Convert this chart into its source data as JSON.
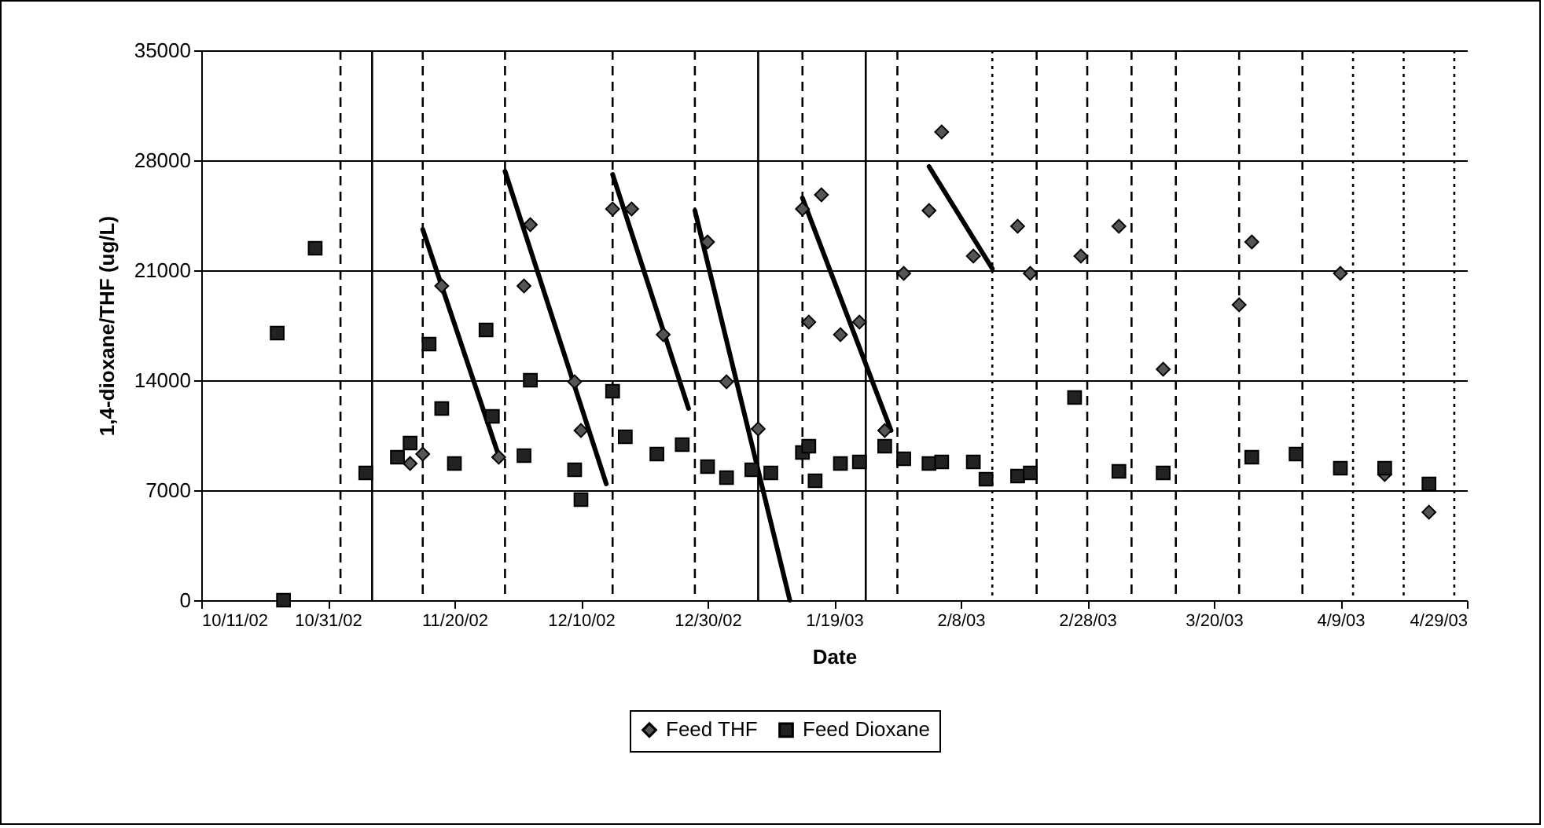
{
  "chart_data": {
    "type": "scatter",
    "xlabel": "Date",
    "ylabel": "1,4-dioxane/THF (ug/L)",
    "xlim": [
      "2002-10-11",
      "2003-04-29"
    ],
    "xticks": [
      {
        "value": "2002-10-11",
        "label": "10/11/02"
      },
      {
        "value": "2002-10-31",
        "label": "10/31/02"
      },
      {
        "value": "2002-11-20",
        "label": "11/20/02"
      },
      {
        "value": "2002-12-10",
        "label": "12/10/02"
      },
      {
        "value": "2002-12-30",
        "label": "12/30/02"
      },
      {
        "value": "2003-01-19",
        "label": "1/19/03"
      },
      {
        "value": "2003-02-08",
        "label": "2/8/03"
      },
      {
        "value": "2003-02-28",
        "label": "2/28/03"
      },
      {
        "value": "2003-03-20",
        "label": "3/20/03"
      },
      {
        "value": "2003-04-09",
        "label": "4/9/03"
      },
      {
        "value": "2003-04-29",
        "label": "4/29/03"
      }
    ],
    "ylim": [
      0,
      35000
    ],
    "yticks": [
      0,
      7000,
      14000,
      21000,
      28000,
      35000
    ],
    "grid": "y",
    "legend": "bottom",
    "series": [
      {
        "name": "Feed THF",
        "marker": "diamond",
        "color": "#555555",
        "x": [
          "2002-11-13",
          "2002-11-15",
          "2002-11-18",
          "2002-11-27",
          "2002-12-01",
          "2002-12-02",
          "2002-12-09",
          "2002-12-10",
          "2002-12-15",
          "2002-12-18",
          "2002-12-23",
          "2002-12-30",
          "2003-01-02",
          "2003-01-07",
          "2003-01-14",
          "2003-01-15",
          "2003-01-17",
          "2003-01-20",
          "2003-01-23",
          "2003-01-27",
          "2003-01-30",
          "2003-02-03",
          "2003-02-05",
          "2003-02-10",
          "2003-02-17",
          "2003-02-19",
          "2003-02-27",
          "2003-03-05",
          "2003-03-12",
          "2003-03-24",
          "2003-03-26",
          "2003-04-09",
          "2003-04-16",
          "2003-04-23"
        ],
        "values": [
          8700,
          9300,
          20000,
          9100,
          20000,
          23900,
          13900,
          10800,
          24900,
          24900,
          16900,
          22800,
          13900,
          10900,
          24900,
          17700,
          25800,
          16900,
          17700,
          10800,
          20800,
          24800,
          29800,
          21900,
          23800,
          20800,
          21900,
          23800,
          14700,
          18800,
          22800,
          20800,
          8000,
          5600
        ]
      },
      {
        "name": "Feed Dioxane",
        "marker": "square",
        "color": "#222222",
        "x": [
          "2002-10-23",
          "2002-10-24",
          "2002-10-29",
          "2002-11-06",
          "2002-11-11",
          "2002-11-13",
          "2002-11-16",
          "2002-11-18",
          "2002-11-20",
          "2002-11-25",
          "2002-11-26",
          "2002-12-01",
          "2002-12-02",
          "2002-12-09",
          "2002-12-10",
          "2002-12-15",
          "2002-12-17",
          "2002-12-22",
          "2002-12-26",
          "2002-12-30",
          "2003-01-02",
          "2003-01-06",
          "2003-01-09",
          "2003-01-14",
          "2003-01-15",
          "2003-01-16",
          "2003-01-20",
          "2003-01-23",
          "2003-01-27",
          "2003-01-30",
          "2003-02-03",
          "2003-02-05",
          "2003-02-10",
          "2003-02-12",
          "2003-02-17",
          "2003-02-19",
          "2003-02-26",
          "2003-03-05",
          "2003-03-12",
          "2003-03-26",
          "2003-04-02",
          "2003-04-09",
          "2003-04-16",
          "2003-04-23"
        ],
        "values": [
          17000,
          0,
          22400,
          8100,
          9100,
          10000,
          16300,
          12200,
          8700,
          17200,
          11700,
          9200,
          14000,
          8300,
          6400,
          13300,
          10400,
          9300,
          9900,
          8500,
          7800,
          8300,
          8100,
          9400,
          9800,
          7600,
          8700,
          8800,
          9800,
          9000,
          8700,
          8800,
          8800,
          7700,
          7900,
          8100,
          12900,
          8200,
          8100,
          9100,
          9300,
          8400,
          8400,
          7400
        ]
      },
      {
        "type": "line",
        "color": "#000000",
        "x": [
          "2002-11-15",
          "2002-11-27"
        ],
        "values": [
          23600,
          9200
        ]
      },
      {
        "type": "line",
        "color": "#000000",
        "x": [
          "2002-11-28",
          "2002-12-14"
        ],
        "values": [
          27300,
          7400
        ]
      },
      {
        "type": "line",
        "color": "#000000",
        "x": [
          "2002-12-15",
          "2002-12-27"
        ],
        "values": [
          27100,
          12200
        ]
      },
      {
        "type": "line",
        "color": "#000000",
        "x": [
          "2002-12-28",
          "2003-01-12"
        ],
        "values": [
          24800,
          0
        ]
      },
      {
        "type": "line",
        "color": "#000000",
        "x": [
          "2003-01-14",
          "2003-01-28"
        ],
        "values": [
          25600,
          10800
        ]
      },
      {
        "type": "line",
        "color": "#000000",
        "x": [
          "2003-02-03",
          "2003-02-13"
        ],
        "values": [
          27600,
          21100
        ]
      }
    ],
    "ref_lines": [
      {
        "axis": "x",
        "value": "2002-11-02",
        "line_style": "dashed"
      },
      {
        "axis": "x",
        "value": "2002-11-07",
        "line_style": "solid"
      },
      {
        "axis": "x",
        "value": "2002-11-15",
        "line_style": "dashed"
      },
      {
        "axis": "x",
        "value": "2002-11-28",
        "line_style": "dashed"
      },
      {
        "axis": "x",
        "value": "2002-12-15",
        "line_style": "dashed"
      },
      {
        "axis": "x",
        "value": "2002-12-28",
        "line_style": "dashed"
      },
      {
        "axis": "x",
        "value": "2003-01-07",
        "line_style": "solid"
      },
      {
        "axis": "x",
        "value": "2003-01-14",
        "line_style": "dashed"
      },
      {
        "axis": "x",
        "value": "2003-01-24",
        "line_style": "solid"
      },
      {
        "axis": "x",
        "value": "2003-01-29",
        "line_style": "dashed"
      },
      {
        "axis": "x",
        "value": "2003-02-13",
        "line_style": "dotted"
      },
      {
        "axis": "x",
        "value": "2003-02-20",
        "line_style": "dashed"
      },
      {
        "axis": "x",
        "value": "2003-02-28",
        "line_style": "dashed"
      },
      {
        "axis": "x",
        "value": "2003-03-07",
        "line_style": "dashed"
      },
      {
        "axis": "x",
        "value": "2003-03-14",
        "line_style": "dashed"
      },
      {
        "axis": "x",
        "value": "2003-03-24",
        "line_style": "dashed"
      },
      {
        "axis": "x",
        "value": "2003-04-03",
        "line_style": "dashed"
      },
      {
        "axis": "x",
        "value": "2003-04-11",
        "line_style": "dotted"
      },
      {
        "axis": "x",
        "value": "2003-04-19",
        "line_style": "dotted"
      },
      {
        "axis": "x",
        "value": "2003-04-27",
        "line_style": "dotted"
      }
    ]
  }
}
